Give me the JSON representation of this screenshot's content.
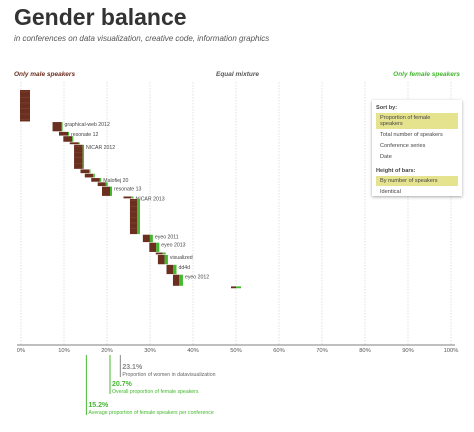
{
  "header": {
    "title": "Gender balance",
    "subtitle": "in conferences on data visualization, creative code, information graphics"
  },
  "scale_labels": {
    "left": "Only male speakers",
    "center": "Equal mixture",
    "right": "Only female speakers"
  },
  "sort_panel": {
    "sort_heading": "Sort by:",
    "sort_options": [
      "Proportion of female speakers",
      "Total number of speakers",
      "Conference series",
      "Date"
    ],
    "sort_selected": 0,
    "height_heading": "Height of bars:",
    "height_options": [
      "By number of speakers",
      "Identical"
    ],
    "height_selected": 0
  },
  "colors": {
    "male": "#6b2f1f",
    "female": "#44b82e",
    "text": "#333333",
    "grid": "#cccccc",
    "highlight": "#e6e38f"
  },
  "chart_data": {
    "type": "bar",
    "description_axis": "female share of speakers",
    "xlim": [
      0,
      100
    ],
    "x_ticks": [
      "0%",
      "10%",
      "20%",
      "30%",
      "40%",
      "50%",
      "60%",
      "70%",
      "80%",
      "90%",
      "100%"
    ],
    "bars": [
      {
        "pct": 0,
        "count": 17,
        "label": ""
      },
      {
        "pct": 8.5,
        "count": 5,
        "label": "graphical-web 2012"
      },
      {
        "pct": 10,
        "count": 2,
        "label": "resonate 12"
      },
      {
        "pct": 11,
        "count": 3,
        "label": ""
      },
      {
        "pct": 12.5,
        "count": 1,
        "label": ""
      },
      {
        "pct": 13.5,
        "count": 13,
        "label": "NICAR 2012"
      },
      {
        "pct": 15,
        "count": 2,
        "label": ""
      },
      {
        "pct": 16,
        "count": 2,
        "label": ""
      },
      {
        "pct": 17.5,
        "count": 2,
        "label": "Malofiej 20"
      },
      {
        "pct": 19,
        "count": 2,
        "label": ""
      },
      {
        "pct": 20,
        "count": 5,
        "label": "resonate 13"
      },
      {
        "pct": 25,
        "count": 1,
        "label": "NICAR 2013"
      },
      {
        "pct": 26.5,
        "count": 19,
        "label": ""
      },
      {
        "pct": 29.5,
        "count": 4,
        "label": "eyeo 2011"
      },
      {
        "pct": 31,
        "count": 5,
        "label": "eyeo 2013"
      },
      {
        "pct": 32.5,
        "count": 1,
        "label": ""
      },
      {
        "pct": 33,
        "count": 5,
        "label": "visualized"
      },
      {
        "pct": 35,
        "count": 5,
        "label": "dd4d"
      },
      {
        "pct": 36.5,
        "count": 6,
        "label": "eyeo 2012"
      },
      {
        "pct": 50,
        "count": 1,
        "label": ""
      }
    ],
    "annotations": [
      {
        "value": 23.1,
        "value_text": "23.1%",
        "label": "Proportion of women in datavisualization",
        "color": "#888888"
      },
      {
        "value": 20.7,
        "value_text": "20.7%",
        "label": "Overall proportion of female speakers",
        "color": "#44b82e"
      },
      {
        "value": 15.2,
        "value_text": "15.2%",
        "label": "Average proportion of female speakers per conference",
        "color": "#44b82e"
      }
    ]
  }
}
